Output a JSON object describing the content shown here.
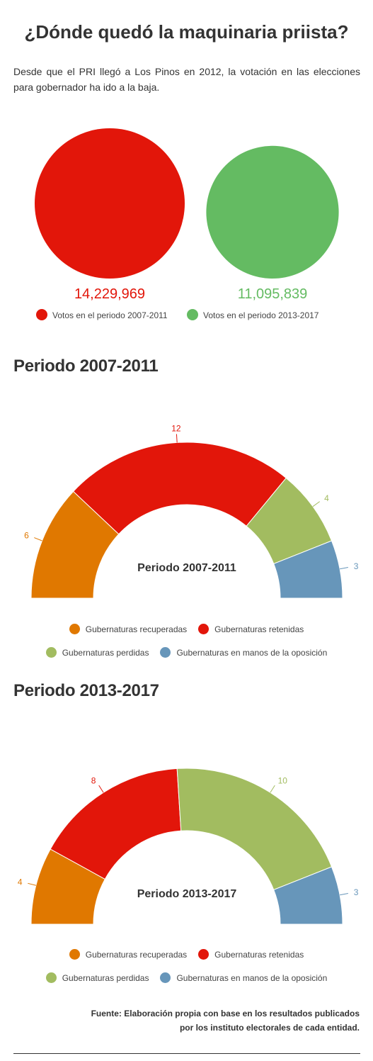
{
  "header": {
    "title": "¿Dónde quedó la maquinaria priista?",
    "intro": "Desde que el PRI llegó a Los Pinos en 2012, la votación en las elecciones para gobernador ha ido a la baja."
  },
  "colors": {
    "recuperadas": "#e07800",
    "retenidas": "#e2160a",
    "perdidas": "#a2bc60",
    "oposicion": "#6796ba",
    "votes_2007": "#e2160a",
    "votes_2013": "#64bb62"
  },
  "votes": {
    "series": [
      {
        "name": "Votos en el periodo 2007-2011",
        "value": 14229969,
        "label": "14,229,969"
      },
      {
        "name": "Votos en el periodo 2013-2017",
        "value": 11095839,
        "label": "11,095,839"
      }
    ]
  },
  "sections": {
    "s1_title": "Periodo 2007-2011",
    "s2_title": "Periodo 2013-2017"
  },
  "legend": {
    "recuperadas": "Gubernaturas recuperadas",
    "retenidas": "Gubernaturas retenidas",
    "perdidas": "Gubernaturas perdidas",
    "oposicion": "Gubernaturas en manos de la oposición"
  },
  "chart_data": [
    {
      "type": "pie",
      "variant": "proportional-circles",
      "categories": [
        "Votos en el periodo 2007-2011",
        "Votos en el periodo 2013-2017"
      ],
      "values": [
        14229969,
        11095839
      ],
      "title": ""
    },
    {
      "type": "pie",
      "variant": "semicircle-donut",
      "center_label": "Periodo 2007-2011",
      "categories": [
        "Gubernaturas recuperadas",
        "Gubernaturas retenidas",
        "Gubernaturas perdidas",
        "Gubernaturas en manos de la oposición"
      ],
      "values": [
        6,
        12,
        4,
        3
      ],
      "labels": [
        "6",
        "12",
        "4",
        "3"
      ]
    },
    {
      "type": "pie",
      "variant": "semicircle-donut",
      "center_label": "Periodo 2013-2017",
      "categories": [
        "Gubernaturas recuperadas",
        "Gubernaturas retenidas",
        "Gubernaturas perdidas",
        "Gubernaturas en manos de la oposición"
      ],
      "values": [
        4,
        8,
        10,
        3
      ],
      "labels": [
        "4",
        "8",
        "10",
        "3"
      ]
    }
  ],
  "source": {
    "line1": "Fuente: Elaboración propia con base en los resultados publicados",
    "line2": "por los instituto electorales de cada entidad."
  }
}
